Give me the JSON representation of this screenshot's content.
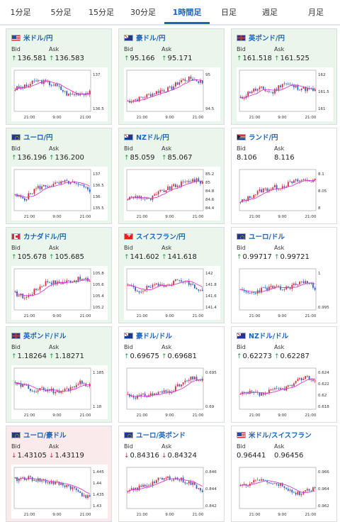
{
  "tabs": [
    {
      "label": "1分足"
    },
    {
      "label": "5分足"
    },
    {
      "label": "15分足"
    },
    {
      "label": "30分足"
    },
    {
      "label": "1時間足"
    },
    {
      "label": "日足"
    },
    {
      "label": "週足"
    },
    {
      "label": "月足"
    }
  ],
  "active_tab": 4,
  "bid_label": "Bid",
  "ask_label": "Ask",
  "colors": {
    "accent": "#1d63b8",
    "up": "#1e9a3e",
    "down": "#d0283a",
    "avg_line": "#d23fd0",
    "price_line": "#2b5fc4"
  },
  "cards": [
    {
      "title": "米ドル/円",
      "flag": "us-flag",
      "state": "up",
      "bid": "136.581",
      "ask": "136.583",
      "bid_dir": "up",
      "ask_dir": "up",
      "chart": {
        "yticks": [
          "137",
          "136.5"
        ],
        "xticks": [
          "21:00",
          "9:00",
          "21:00"
        ],
        "seed": 3,
        "trend": [
          0.55,
          0.6,
          0.75,
          0.7,
          0.6,
          0.4,
          0.45,
          0.45
        ]
      }
    },
    {
      "title": "豪ドル/円",
      "flag": "au-flag",
      "state": "up",
      "bid": "95.166",
      "ask": "95.171",
      "bid_dir": "up",
      "ask_dir": "up",
      "chart": {
        "yticks": [
          "95",
          "94.5"
        ],
        "xticks": [
          "21:00",
          "9:00",
          "21:00"
        ],
        "seed": 7,
        "trend": [
          0.25,
          0.3,
          0.4,
          0.5,
          0.55,
          0.75,
          0.8,
          0.7
        ]
      }
    },
    {
      "title": "英ポンド/円",
      "flag": "gb-flag",
      "state": "up",
      "bid": "161.518",
      "ask": "161.525",
      "bid_dir": "up",
      "ask_dir": "up",
      "chart": {
        "yticks": [
          "162",
          "161.5",
          "161"
        ],
        "xticks": [
          "21:00",
          "9:00",
          "21:00"
        ],
        "seed": 11,
        "trend": [
          0.3,
          0.5,
          0.55,
          0.45,
          0.7,
          0.6,
          0.55,
          0.5
        ]
      }
    },
    {
      "title": "ユーロ/円",
      "flag": "eu-flag",
      "state": "up",
      "bid": "136.196",
      "ask": "136.200",
      "bid_dir": "up",
      "ask_dir": "up",
      "chart": {
        "yticks": [
          "137",
          "136.5",
          "136",
          "135.5"
        ],
        "xticks": [
          "21:00",
          "9:00",
          "21:00"
        ],
        "seed": 5,
        "trend": [
          0.35,
          0.3,
          0.55,
          0.6,
          0.65,
          0.7,
          0.6,
          0.5
        ]
      }
    },
    {
      "title": "NZドル/円",
      "flag": "nz-flag",
      "state": "up",
      "bid": "85.059",
      "ask": "85.067",
      "bid_dir": "up",
      "ask_dir": "up",
      "chart": {
        "yticks": [
          "85.2",
          "85",
          "84.8",
          "84.6",
          "84.4"
        ],
        "xticks": [
          "21:00",
          "9:00",
          "21:00"
        ],
        "seed": 9,
        "trend": [
          0.3,
          0.35,
          0.25,
          0.45,
          0.55,
          0.65,
          0.75,
          0.7
        ]
      }
    },
    {
      "title": "ランド/円",
      "flag": "za-flag",
      "state": "flat",
      "bid": "8.106",
      "ask": "8.116",
      "bid_dir": "none",
      "ask_dir": "none",
      "chart": {
        "yticks": [
          "8.1",
          "8.05",
          "8"
        ],
        "xticks": [
          "21:00",
          "9:00",
          "21:00"
        ],
        "seed": 13,
        "trend": [
          0.2,
          0.35,
          0.5,
          0.55,
          0.6,
          0.7,
          0.75,
          0.72
        ]
      }
    },
    {
      "title": "カナダドル/円",
      "flag": "ca-flag",
      "state": "up",
      "bid": "105.678",
      "ask": "105.685",
      "bid_dir": "up",
      "ask_dir": "up",
      "chart": {
        "yticks": [
          "105.8",
          "105.6",
          "105.4",
          "105.2"
        ],
        "xticks": [
          "21:00",
          "9:00",
          "21:00"
        ],
        "seed": 17,
        "trend": [
          0.4,
          0.3,
          0.5,
          0.7,
          0.65,
          0.7,
          0.75,
          0.72
        ]
      }
    },
    {
      "title": "スイスフラン/円",
      "flag": "ch-flag",
      "state": "up",
      "bid": "141.602",
      "ask": "141.618",
      "bid_dir": "up",
      "ask_dir": "up",
      "chart": {
        "yticks": [
          "142",
          "141.8",
          "141.6",
          "141.4"
        ],
        "xticks": [
          "21:00",
          "9:00",
          "21:00"
        ],
        "seed": 19,
        "trend": [
          0.6,
          0.45,
          0.55,
          0.6,
          0.65,
          0.75,
          0.6,
          0.45
        ]
      }
    },
    {
      "title": "ユーロ/ドル",
      "flag": "eu-flag",
      "state": "flat",
      "bid": "0.99717",
      "ask": "0.99721",
      "bid_dir": "up",
      "ask_dir": "up",
      "chart": {
        "yticks": [
          "1",
          "0.995"
        ],
        "xticks": [
          "21:00",
          "9:00",
          "21:00"
        ],
        "seed": 23,
        "trend": [
          0.45,
          0.4,
          0.5,
          0.55,
          0.5,
          0.6,
          0.7,
          0.55
        ]
      }
    },
    {
      "title": "英ポンド/ドル",
      "flag": "gb-flag",
      "state": "up",
      "bid": "1.18264",
      "ask": "1.18271",
      "bid_dir": "up",
      "ask_dir": "up",
      "chart": {
        "yticks": [
          "1.185",
          "1.18"
        ],
        "xticks": [
          "21:00",
          "9:00",
          "21:00"
        ],
        "seed": 29,
        "trend": [
          0.6,
          0.55,
          0.45,
          0.5,
          0.4,
          0.5,
          0.65,
          0.6
        ]
      }
    },
    {
      "title": "豪ドル/ドル",
      "flag": "au-flag",
      "state": "flat",
      "bid": "0.69675",
      "ask": "0.69681",
      "bid_dir": "up",
      "ask_dir": "up",
      "chart": {
        "yticks": [
          "0.695",
          "0.69"
        ],
        "xticks": [
          "21:00",
          "9:00",
          "21:00"
        ],
        "seed": 31,
        "trend": [
          0.35,
          0.3,
          0.35,
          0.4,
          0.45,
          0.6,
          0.75,
          0.7
        ]
      }
    },
    {
      "title": "NZドル/ドル",
      "flag": "nz-flag",
      "state": "flat",
      "bid": "0.62273",
      "ask": "0.62287",
      "bid_dir": "up",
      "ask_dir": "up",
      "chart": {
        "yticks": [
          "0.624",
          "0.622",
          "0.62",
          "0.618"
        ],
        "xticks": [
          "21:00",
          "9:00",
          "21:00"
        ],
        "seed": 37,
        "trend": [
          0.35,
          0.4,
          0.35,
          0.45,
          0.5,
          0.6,
          0.8,
          0.7
        ]
      }
    },
    {
      "title": "ユーロ/豪ドル",
      "flag": "eu-flag",
      "state": "down",
      "bid": "1.43105",
      "ask": "1.43119",
      "bid_dir": "down",
      "ask_dir": "down",
      "chart": {
        "yticks": [
          "1.445",
          "1.44",
          "1.435",
          "1.43"
        ],
        "xticks": [
          "21:00",
          "9:00",
          "21:00"
        ],
        "seed": 41,
        "trend": [
          0.7,
          0.75,
          0.7,
          0.65,
          0.6,
          0.55,
          0.4,
          0.25
        ]
      }
    },
    {
      "title": "ユーロ/英ポンド",
      "flag": "eu-flag",
      "state": "flat",
      "bid": "0.84316",
      "ask": "0.84324",
      "bid_dir": "down",
      "ask_dir": "down",
      "chart": {
        "yticks": [
          "0.846",
          "0.844",
          "0.842"
        ],
        "xticks": [
          "21:00",
          "9:00",
          "21:00"
        ],
        "seed": 43,
        "trend": [
          0.4,
          0.5,
          0.6,
          0.7,
          0.75,
          0.7,
          0.6,
          0.45
        ]
      }
    },
    {
      "title": "米ドル/スイスフラン",
      "flag": "us-flag",
      "state": "flat",
      "bid": "0.96441",
      "ask": "0.96456",
      "bid_dir": "none",
      "ask_dir": "none",
      "chart": {
        "yticks": [
          "0.966",
          "0.964",
          "0.962"
        ],
        "xticks": [
          "21:00",
          "9:00",
          "21:00"
        ],
        "seed": 47,
        "trend": [
          0.5,
          0.65,
          0.7,
          0.6,
          0.55,
          0.35,
          0.4,
          0.5
        ]
      }
    }
  ]
}
